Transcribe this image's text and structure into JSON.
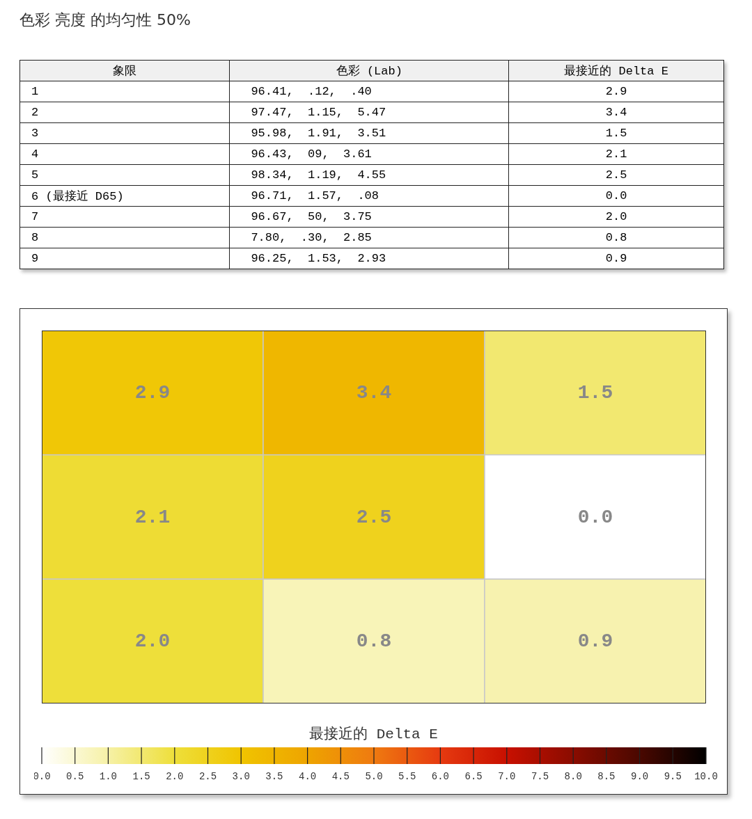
{
  "chart_data": [
    {
      "type": "other",
      "title": "色彩 亮度 的均匀性 50%",
      "annotations": [
        "象限",
        "色彩 (Lab)",
        "最接近的 Delta E",
        "1",
        "96.41,  .12,  .40",
        "2.9",
        "2",
        "97.47,  1.15,  5.47",
        "3.4",
        "3",
        "95.98,  1.91,  3.51",
        "1.5",
        "4",
        "96.43,  09,  3.61",
        "2.1",
        "5",
        "98.34,  1.19,  4.55",
        "2.5",
        "6 (最接近 D65)",
        "96.71,  1.57,  .08",
        "0.0",
        "7",
        "96.67,  50,  3.75",
        "2.0",
        "8",
        "7.80,  .30,  2.85",
        "0.8",
        "9",
        "96.25,  1.53,  2.93",
        "0.9"
      ]
    },
    {
      "type": "heatmap",
      "categories": [
        null,
        null,
        null
      ],
      "y_categories": [
        null,
        null,
        null
      ],
      "cells": [
        [
          2.9,
          3.4,
          1.5
        ],
        [
          2.1,
          2.5,
          0.0
        ],
        [
          2.0,
          0.8,
          0.9
        ]
      ],
      "cell_labels": [
        [
          "2.9",
          "3.4",
          "1.5"
        ],
        [
          "2.1",
          "2.5",
          "0.0"
        ],
        [
          "2.0",
          "0.8",
          "0.9"
        ]
      ],
      "clabel": "最接近的 Delta E",
      "clim": [
        0,
        10
      ],
      "cticks": [
        {
          "value": 0,
          "label": "0.0"
        },
        {
          "value": 0.5,
          "label": "0.5"
        },
        {
          "value": 1,
          "label": "1.0"
        },
        {
          "value": 1.5,
          "label": "1.5"
        },
        {
          "value": 2,
          "label": "2.0"
        },
        {
          "value": 2.5,
          "label": "2.5"
        },
        {
          "value": 3,
          "label": "3.0"
        },
        {
          "value": 3.5,
          "label": "3.5"
        },
        {
          "value": 4,
          "label": "4.0"
        },
        {
          "value": 4.5,
          "label": "4.5"
        },
        {
          "value": 5,
          "label": "5.0"
        },
        {
          "value": 5.5,
          "label": "5.5"
        },
        {
          "value": 6,
          "label": "6.0"
        },
        {
          "value": 6.5,
          "label": "6.5"
        },
        {
          "value": 7,
          "label": "7.0"
        },
        {
          "value": 7.5,
          "label": "7.5"
        },
        {
          "value": 8,
          "label": "8.0"
        },
        {
          "value": 8.5,
          "label": "8.5"
        },
        {
          "value": 9,
          "label": "9.0"
        },
        {
          "value": 9.5,
          "label": "9.5"
        },
        {
          "value": 10,
          "label": "10.0"
        }
      ]
    }
  ]
}
